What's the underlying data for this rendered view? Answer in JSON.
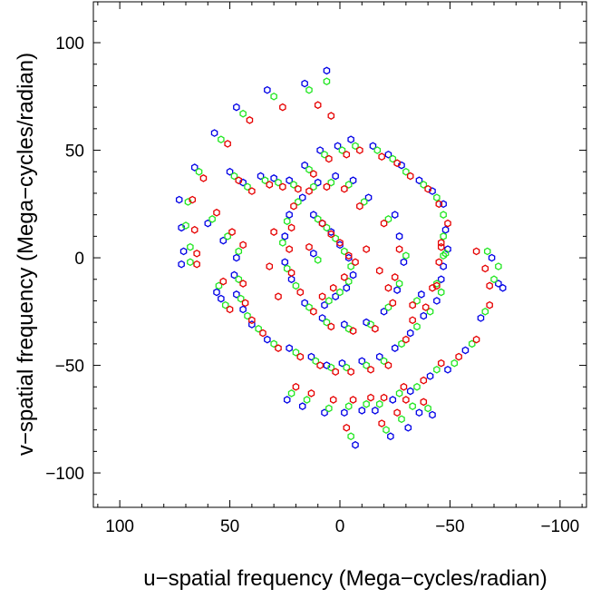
{
  "chart_data": {
    "type": "scatter",
    "xlabel": "u−spatial frequency (Mega−cycles/radian)",
    "ylabel": "v−spatial frequency (Mega−cycles/radian)",
    "xlim": [
      -112,
      112
    ],
    "ylim": [
      -116,
      119
    ],
    "x_reversed": true,
    "x_ticks": [
      100,
      50,
      0,
      -50,
      -100
    ],
    "x_tick_labels": [
      "100",
      "50",
      "0",
      "−50",
      "−100"
    ],
    "y_ticks": [
      100,
      50,
      0,
      -50,
      -100
    ],
    "y_tick_labels": [
      "100",
      "50",
      "0",
      "−50",
      "−100"
    ],
    "grid": false,
    "marker": "hexagon (open)",
    "colors": {
      "blue": "#0000e6",
      "green": "#22e622",
      "red": "#e60000"
    },
    "series": [
      {
        "color": "#0000e6",
        "points": [
          [
            73,
            27
          ],
          [
            72,
            14
          ],
          [
            71,
            3
          ],
          [
            72,
            -3
          ],
          [
            66,
            42
          ],
          [
            57,
            58
          ],
          [
            47,
            70
          ],
          [
            33,
            78
          ],
          [
            16,
            81
          ],
          [
            6,
            87
          ],
          [
            50,
            40
          ],
          [
            44,
            35
          ],
          [
            36,
            38
          ],
          [
            30,
            37
          ],
          [
            23,
            36
          ],
          [
            16,
            43
          ],
          [
            9,
            50
          ],
          [
            1,
            52
          ],
          [
            -5,
            55
          ],
          [
            -15,
            52
          ],
          [
            -22,
            48
          ],
          [
            -28,
            43
          ],
          [
            -36,
            36
          ],
          [
            -42,
            31
          ],
          [
            -47,
            25
          ],
          [
            -48,
            13
          ],
          [
            -49,
            4
          ],
          [
            -46,
            -10
          ],
          [
            -37,
            -17
          ],
          [
            -25,
            20
          ],
          [
            -13,
            28
          ],
          [
            -6,
            36
          ],
          [
            2,
            38
          ],
          [
            10,
            35
          ],
          [
            17,
            28
          ],
          [
            23,
            20
          ],
          [
            25,
            10
          ],
          [
            25,
            -2
          ],
          [
            22,
            -10
          ],
          [
            16,
            -21
          ],
          [
            8,
            -28
          ],
          [
            -2,
            -31
          ],
          [
            -12,
            -30
          ],
          [
            -20,
            -25
          ],
          [
            -26,
            -15
          ],
          [
            -29,
            -2
          ],
          [
            -27,
            10
          ],
          [
            48,
            -8
          ],
          [
            47,
            -17
          ],
          [
            44,
            -24
          ],
          [
            40,
            -31
          ],
          [
            33,
            -38
          ],
          [
            23,
            -42
          ],
          [
            13,
            -46
          ],
          [
            6,
            -50
          ],
          [
            -1,
            -49
          ],
          [
            -10,
            -48
          ],
          [
            -18,
            -46
          ],
          [
            -25,
            -42
          ],
          [
            -32,
            -35
          ],
          [
            -38,
            -27
          ],
          [
            -44,
            -20
          ],
          [
            -47,
            -4
          ],
          [
            24,
            -66
          ],
          [
            17,
            -69
          ],
          [
            7,
            -72
          ],
          [
            -2,
            -72
          ],
          [
            -10,
            -71
          ],
          [
            -16,
            -71
          ],
          [
            -24,
            -66
          ],
          [
            -32,
            -62
          ],
          [
            -41,
            -55
          ],
          [
            -49,
            -52
          ],
          [
            -57,
            -43
          ],
          [
            -64,
            -28
          ],
          [
            -72,
            -12
          ],
          [
            -74,
            -14
          ],
          [
            -69,
            0
          ],
          [
            -42,
            -73
          ],
          [
            -36,
            -72
          ],
          [
            -31,
            -79
          ],
          [
            -23,
            -83
          ],
          [
            -7,
            -87
          ],
          [
            56,
            -16
          ],
          [
            54,
            -19
          ],
          [
            47,
            0
          ],
          [
            53,
            8
          ],
          [
            60,
            16
          ],
          [
            12,
            20
          ],
          [
            8,
            16
          ],
          [
            4,
            12
          ],
          [
            0,
            6
          ],
          [
            -4,
            0
          ],
          [
            -6,
            -8
          ],
          [
            -3,
            -14
          ],
          [
            2,
            -18
          ],
          [
            7,
            -22
          ],
          [
            12,
            2
          ]
        ]
      },
      {
        "color": "#22e622",
        "points": [
          [
            69,
            26
          ],
          [
            70,
            15
          ],
          [
            68,
            5
          ],
          [
            68,
            -2
          ],
          [
            64,
            40
          ],
          [
            54,
            55
          ],
          [
            44,
            67
          ],
          [
            30,
            75
          ],
          [
            14,
            78
          ],
          [
            6,
            82
          ],
          [
            48,
            38
          ],
          [
            42,
            33
          ],
          [
            34,
            36
          ],
          [
            28,
            35
          ],
          [
            21,
            34
          ],
          [
            14,
            41
          ],
          [
            7,
            48
          ],
          [
            -1,
            50
          ],
          [
            -7,
            52
          ],
          [
            -17,
            50
          ],
          [
            -24,
            46
          ],
          [
            -30,
            40
          ],
          [
            -38,
            34
          ],
          [
            -44,
            28
          ],
          [
            -47,
            20
          ],
          [
            -47,
            10
          ],
          [
            -47,
            1
          ],
          [
            -44,
            -12
          ],
          [
            -35,
            -20
          ],
          [
            -22,
            18
          ],
          [
            -11,
            26
          ],
          [
            -4,
            34
          ],
          [
            4,
            35
          ],
          [
            12,
            33
          ],
          [
            19,
            26
          ],
          [
            24,
            17
          ],
          [
            26,
            7
          ],
          [
            24,
            -5
          ],
          [
            20,
            -13
          ],
          [
            14,
            -23
          ],
          [
            6,
            -30
          ],
          [
            -4,
            -33
          ],
          [
            -14,
            -31
          ],
          [
            -22,
            -23
          ],
          [
            -27,
            -12
          ],
          [
            -30,
            1
          ],
          [
            46,
            -10
          ],
          [
            45,
            -19
          ],
          [
            42,
            -27
          ],
          [
            37,
            -33
          ],
          [
            30,
            -40
          ],
          [
            20,
            -44
          ],
          [
            11,
            -48
          ],
          [
            4,
            -51
          ],
          [
            -3,
            -51
          ],
          [
            -12,
            -50
          ],
          [
            -20,
            -48
          ],
          [
            -28,
            -40
          ],
          [
            -35,
            -32
          ],
          [
            -41,
            -25
          ],
          [
            -46,
            -16
          ],
          [
            -48,
            2
          ],
          [
            22,
            -63
          ],
          [
            15,
            -66
          ],
          [
            5,
            -70
          ],
          [
            -4,
            -69
          ],
          [
            -12,
            -68
          ],
          [
            -18,
            -68
          ],
          [
            -27,
            -63
          ],
          [
            -35,
            -60
          ],
          [
            -44,
            -52
          ],
          [
            -52,
            -49
          ],
          [
            -60,
            -40
          ],
          [
            -66,
            -25
          ],
          [
            -70,
            -10
          ],
          [
            -72,
            -4
          ],
          [
            -67,
            3
          ],
          [
            -40,
            -70
          ],
          [
            -33,
            -69
          ],
          [
            -28,
            -75
          ],
          [
            -21,
            -80
          ],
          [
            -5,
            -83
          ],
          [
            55,
            -13
          ],
          [
            52,
            -22
          ],
          [
            46,
            3
          ],
          [
            51,
            10
          ],
          [
            58,
            18
          ],
          [
            10,
            18
          ],
          [
            6,
            14
          ],
          [
            2,
            9
          ],
          [
            -2,
            3
          ],
          [
            -5,
            -4
          ],
          [
            -4,
            -11
          ],
          [
            0,
            -16
          ],
          [
            5,
            -20
          ],
          [
            10,
            -1
          ]
        ]
      },
      {
        "color": "#e60000",
        "points": [
          [
            67,
            27
          ],
          [
            66,
            13
          ],
          [
            65,
            2
          ],
          [
            65,
            -3
          ],
          [
            62,
            37
          ],
          [
            51,
            53
          ],
          [
            41,
            64
          ],
          [
            26,
            70
          ],
          [
            10,
            71
          ],
          [
            4,
            66
          ],
          [
            46,
            36
          ],
          [
            40,
            31
          ],
          [
            32,
            34
          ],
          [
            26,
            33
          ],
          [
            19,
            32
          ],
          [
            12,
            39
          ],
          [
            5,
            46
          ],
          [
            -3,
            48
          ],
          [
            -9,
            50
          ],
          [
            -19,
            47
          ],
          [
            -26,
            44
          ],
          [
            -32,
            38
          ],
          [
            -40,
            32
          ],
          [
            -45,
            25
          ],
          [
            -49,
            16
          ],
          [
            -46,
            7
          ],
          [
            -45,
            -2
          ],
          [
            -42,
            -14
          ],
          [
            -33,
            -22
          ],
          [
            -20,
            16
          ],
          [
            -9,
            24
          ],
          [
            -2,
            32
          ],
          [
            6,
            33
          ],
          [
            14,
            31
          ],
          [
            21,
            24
          ],
          [
            22,
            14
          ],
          [
            23,
            4
          ],
          [
            22,
            -7
          ],
          [
            18,
            -16
          ],
          [
            12,
            -25
          ],
          [
            4,
            -32
          ],
          [
            -6,
            -34
          ],
          [
            -16,
            -33
          ],
          [
            -24,
            -21
          ],
          [
            -25,
            -9
          ],
          [
            -27,
            4
          ],
          [
            44,
            -12
          ],
          [
            43,
            -21
          ],
          [
            40,
            -29
          ],
          [
            35,
            -35
          ],
          [
            28,
            -42
          ],
          [
            18,
            -46
          ],
          [
            9,
            -50
          ],
          [
            2,
            -53
          ],
          [
            -5,
            -53
          ],
          [
            -14,
            -52
          ],
          [
            -22,
            -50
          ],
          [
            -30,
            -38
          ],
          [
            -33,
            -29
          ],
          [
            -39,
            -23
          ],
          [
            -44,
            -13
          ],
          [
            -46,
            5
          ],
          [
            20,
            -60
          ],
          [
            13,
            -63
          ],
          [
            3,
            -66
          ],
          [
            -6,
            -66
          ],
          [
            -14,
            -65
          ],
          [
            -20,
            -65
          ],
          [
            -29,
            -60
          ],
          [
            -38,
            -57
          ],
          [
            -46,
            -49
          ],
          [
            -54,
            -46
          ],
          [
            -62,
            -38
          ],
          [
            -68,
            -22
          ],
          [
            -68,
            -13
          ],
          [
            -66,
            -5
          ],
          [
            -62,
            3
          ],
          [
            -38,
            -67
          ],
          [
            -30,
            -66
          ],
          [
            -26,
            -72
          ],
          [
            -19,
            -77
          ],
          [
            -3,
            -79
          ],
          [
            53,
            -11
          ],
          [
            50,
            -24
          ],
          [
            44,
            6
          ],
          [
            49,
            12
          ],
          [
            56,
            21
          ],
          [
            8,
            16
          ],
          [
            4,
            11
          ],
          [
            0,
            7
          ],
          [
            -4,
            1
          ],
          [
            -7,
            -2
          ],
          [
            -2,
            -9
          ],
          [
            3,
            -14
          ],
          [
            8,
            -18
          ],
          [
            14,
            5
          ],
          [
            -12,
            4
          ],
          [
            -18,
            -6
          ],
          [
            -22,
            -14
          ],
          [
            30,
            12
          ],
          [
            32,
            -4
          ],
          [
            28,
            -18
          ]
        ]
      }
    ]
  }
}
